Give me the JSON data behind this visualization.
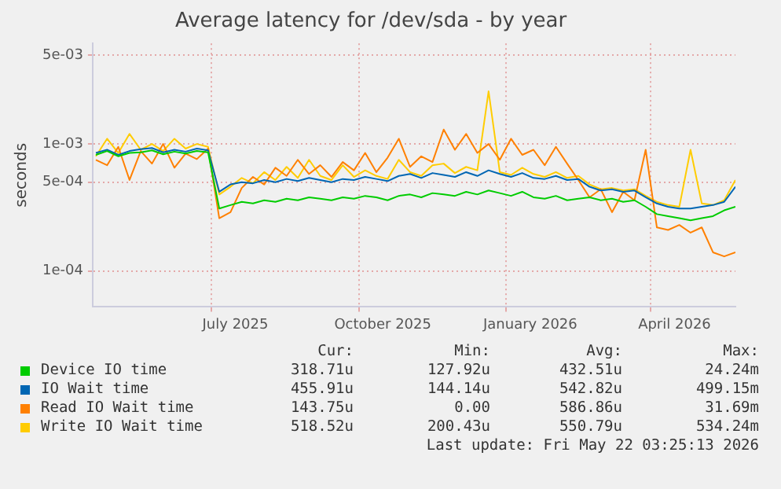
{
  "chart_data": {
    "type": "line",
    "title": "Average latency for /dev/sda - by year",
    "ylabel": "seconds",
    "x": [
      "2025-04-20",
      "2025-04-27",
      "2025-05-04",
      "2025-05-11",
      "2025-05-18",
      "2025-05-25",
      "2025-06-01",
      "2025-06-08",
      "2025-06-15",
      "2025-06-22",
      "2025-06-29",
      "2025-07-06",
      "2025-07-13",
      "2025-07-20",
      "2025-07-27",
      "2025-08-03",
      "2025-08-10",
      "2025-08-17",
      "2025-08-24",
      "2025-08-31",
      "2025-09-07",
      "2025-09-14",
      "2025-09-21",
      "2025-09-28",
      "2025-10-05",
      "2025-10-12",
      "2025-10-19",
      "2025-10-26",
      "2025-11-02",
      "2025-11-09",
      "2025-11-16",
      "2025-11-23",
      "2025-11-30",
      "2025-12-07",
      "2025-12-14",
      "2025-12-21",
      "2025-12-28",
      "2026-01-04",
      "2026-01-11",
      "2026-01-18",
      "2026-01-25",
      "2026-02-01",
      "2026-02-08",
      "2026-02-15",
      "2026-02-22",
      "2026-03-01",
      "2026-03-08",
      "2026-03-15",
      "2026-03-22",
      "2026-03-29",
      "2026-04-05",
      "2026-04-12",
      "2026-04-19",
      "2026-04-26",
      "2026-05-03",
      "2026-05-10",
      "2026-05-17",
      "2026-05-24"
    ],
    "series": [
      {
        "name": "Device IO time",
        "color": "#00cc00",
        "values": [
          0.00082,
          0.00088,
          0.0008,
          0.00085,
          0.00086,
          0.00089,
          0.00083,
          0.00087,
          0.00084,
          0.00088,
          0.00086,
          0.00031,
          0.00033,
          0.00035,
          0.00034,
          0.00036,
          0.00035,
          0.00037,
          0.00036,
          0.00038,
          0.00037,
          0.00036,
          0.00038,
          0.00037,
          0.00039,
          0.00038,
          0.00036,
          0.00039,
          0.0004,
          0.00038,
          0.00041,
          0.0004,
          0.00039,
          0.00042,
          0.0004,
          0.00043,
          0.00041,
          0.00039,
          0.00042,
          0.00038,
          0.00037,
          0.00039,
          0.00036,
          0.00037,
          0.00038,
          0.00036,
          0.00037,
          0.00035,
          0.00036,
          0.00032,
          0.00028,
          0.00027,
          0.00026,
          0.00025,
          0.00026,
          0.00027,
          0.0003,
          0.00032
        ]
      },
      {
        "name": "IO Wait time",
        "color": "#0066b3",
        "values": [
          0.00085,
          0.0009,
          0.00082,
          0.00088,
          0.00091,
          0.00093,
          0.00086,
          0.0009,
          0.00087,
          0.00092,
          0.00089,
          0.00042,
          0.00048,
          0.0005,
          0.00049,
          0.00052,
          0.0005,
          0.00053,
          0.00051,
          0.00054,
          0.00052,
          0.0005,
          0.00053,
          0.00052,
          0.00055,
          0.00053,
          0.00051,
          0.00056,
          0.00058,
          0.00054,
          0.00059,
          0.00057,
          0.00055,
          0.0006,
          0.00056,
          0.00062,
          0.00058,
          0.00055,
          0.00059,
          0.00054,
          0.00053,
          0.00056,
          0.00052,
          0.00053,
          0.00046,
          0.00043,
          0.00044,
          0.00042,
          0.00043,
          0.00038,
          0.00034,
          0.00032,
          0.00031,
          0.00031,
          0.00032,
          0.00033,
          0.00035,
          0.00046
        ]
      },
      {
        "name": "Read IO Wait time",
        "color": "#ff8000",
        "values": [
          0.00075,
          0.00068,
          0.00095,
          0.00052,
          0.00088,
          0.0007,
          0.001,
          0.00065,
          0.00084,
          0.00076,
          0.00092,
          0.00026,
          0.00029,
          0.00045,
          0.00055,
          0.00048,
          0.00065,
          0.00056,
          0.00075,
          0.00058,
          0.00068,
          0.00055,
          0.00072,
          0.00062,
          0.00085,
          0.0006,
          0.00078,
          0.0011,
          0.00066,
          0.0008,
          0.00072,
          0.0013,
          0.0009,
          0.0012,
          0.00085,
          0.001,
          0.00075,
          0.0011,
          0.00082,
          0.0009,
          0.00068,
          0.00095,
          0.0007,
          0.00052,
          0.00038,
          0.00044,
          0.00029,
          0.00042,
          0.00036,
          0.0009,
          0.00022,
          0.00021,
          0.00023,
          0.0002,
          0.00022,
          0.00014,
          0.00013,
          0.00014
        ]
      },
      {
        "name": "Write IO Wait time",
        "color": "#ffcc00",
        "values": [
          0.0008,
          0.0011,
          0.00085,
          0.0012,
          0.0009,
          0.001,
          0.00088,
          0.0011,
          0.00092,
          0.001,
          0.00095,
          0.0004,
          0.00046,
          0.00054,
          0.00049,
          0.0006,
          0.00052,
          0.00066,
          0.00054,
          0.00075,
          0.00056,
          0.00052,
          0.00068,
          0.00055,
          0.00062,
          0.00056,
          0.00053,
          0.00075,
          0.0006,
          0.00056,
          0.00068,
          0.0007,
          0.00059,
          0.00066,
          0.00062,
          0.0026,
          0.0006,
          0.00057,
          0.00065,
          0.00058,
          0.00055,
          0.0006,
          0.00054,
          0.00056,
          0.00048,
          0.00044,
          0.00045,
          0.00043,
          0.00044,
          0.00039,
          0.00035,
          0.00033,
          0.00032,
          0.0009,
          0.00034,
          0.00033,
          0.00036,
          0.00052
        ]
      }
    ],
    "xlim": [
      "2025-04-18",
      "2026-05-24"
    ],
    "xticks": [
      {
        "value": "2025-07-01",
        "label": null
      },
      {
        "value": "2025-07-16",
        "label": "July 2025"
      },
      {
        "value": "2025-10-01",
        "label": null
      },
      {
        "value": "2025-10-16",
        "label": "October 2025"
      },
      {
        "value": "2026-01-01",
        "label": null
      },
      {
        "value": "2026-01-16",
        "label": "January 2026"
      },
      {
        "value": "2026-04-01",
        "label": null
      },
      {
        "value": "2026-04-16",
        "label": "April 2026"
      }
    ],
    "ylim": [
      5.2e-05,
      0.0062
    ],
    "yticks": [
      {
        "value": 0.0001,
        "label": "1e-04"
      },
      {
        "value": 0.0005,
        "label": "5e-04"
      },
      {
        "value": 0.001,
        "label": "1e-03"
      },
      {
        "value": 0.005,
        "label": "5e-03"
      }
    ],
    "log": "y",
    "grid": true,
    "legend": "bottom",
    "marker": "none",
    "line_style": "solid",
    "annotations": [
      "Cur:",
      "Min:",
      "Avg:",
      "Max:",
      "318.71u",
      "127.92u",
      "432.51u",
      "24.24m",
      "455.91u",
      "144.14u",
      "542.82u",
      "499.15m",
      "143.75u",
      "0.00",
      "586.86u",
      "31.69m",
      "518.52u",
      "200.43u",
      "550.79u",
      "534.24m",
      "Last update: Fri May 22 03:25:13 2026"
    ]
  }
}
